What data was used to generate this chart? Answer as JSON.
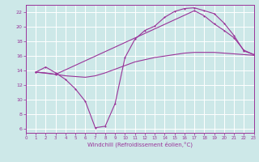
{
  "bg_color": "#cde8e8",
  "grid_color": "#ffffff",
  "line_color": "#993399",
  "xlabel": "Windchill (Refroidissement éolien,°C)",
  "xlim": [
    0,
    23
  ],
  "ylim": [
    5.5,
    23
  ],
  "xticks": [
    0,
    1,
    2,
    3,
    4,
    5,
    6,
    7,
    8,
    9,
    10,
    11,
    12,
    13,
    14,
    15,
    16,
    17,
    18,
    19,
    20,
    21,
    22,
    23
  ],
  "yticks": [
    6,
    8,
    10,
    12,
    14,
    16,
    18,
    20,
    22
  ],
  "line1_x": [
    1,
    2,
    3,
    4,
    5,
    6,
    7,
    8,
    9,
    10,
    11,
    12,
    13,
    14,
    15,
    16,
    17,
    18,
    19,
    20,
    21,
    22,
    23
  ],
  "line1_y": [
    13.8,
    14.5,
    13.7,
    12.8,
    11.5,
    9.8,
    6.2,
    6.4,
    9.5,
    15.8,
    18.3,
    19.5,
    20.1,
    21.3,
    22.1,
    22.5,
    22.6,
    22.2,
    21.8,
    20.5,
    18.8,
    16.7,
    16.2
  ],
  "line2_x": [
    1,
    2,
    3,
    4,
    5,
    6,
    7,
    8,
    9,
    10,
    11,
    12,
    13,
    14,
    15,
    16,
    17,
    18,
    19,
    20,
    21,
    22,
    23
  ],
  "line2_y": [
    13.8,
    13.7,
    13.5,
    13.3,
    13.2,
    13.1,
    13.3,
    13.7,
    14.2,
    14.7,
    15.2,
    15.5,
    15.8,
    16.0,
    16.2,
    16.4,
    16.5,
    16.5,
    16.5,
    16.4,
    16.3,
    16.2,
    16.1
  ],
  "line3_x": [
    1,
    3,
    17,
    18,
    19,
    20,
    21,
    22,
    23
  ],
  "line3_y": [
    13.8,
    13.5,
    22.2,
    21.5,
    20.4,
    19.5,
    18.5,
    16.8,
    16.2
  ]
}
